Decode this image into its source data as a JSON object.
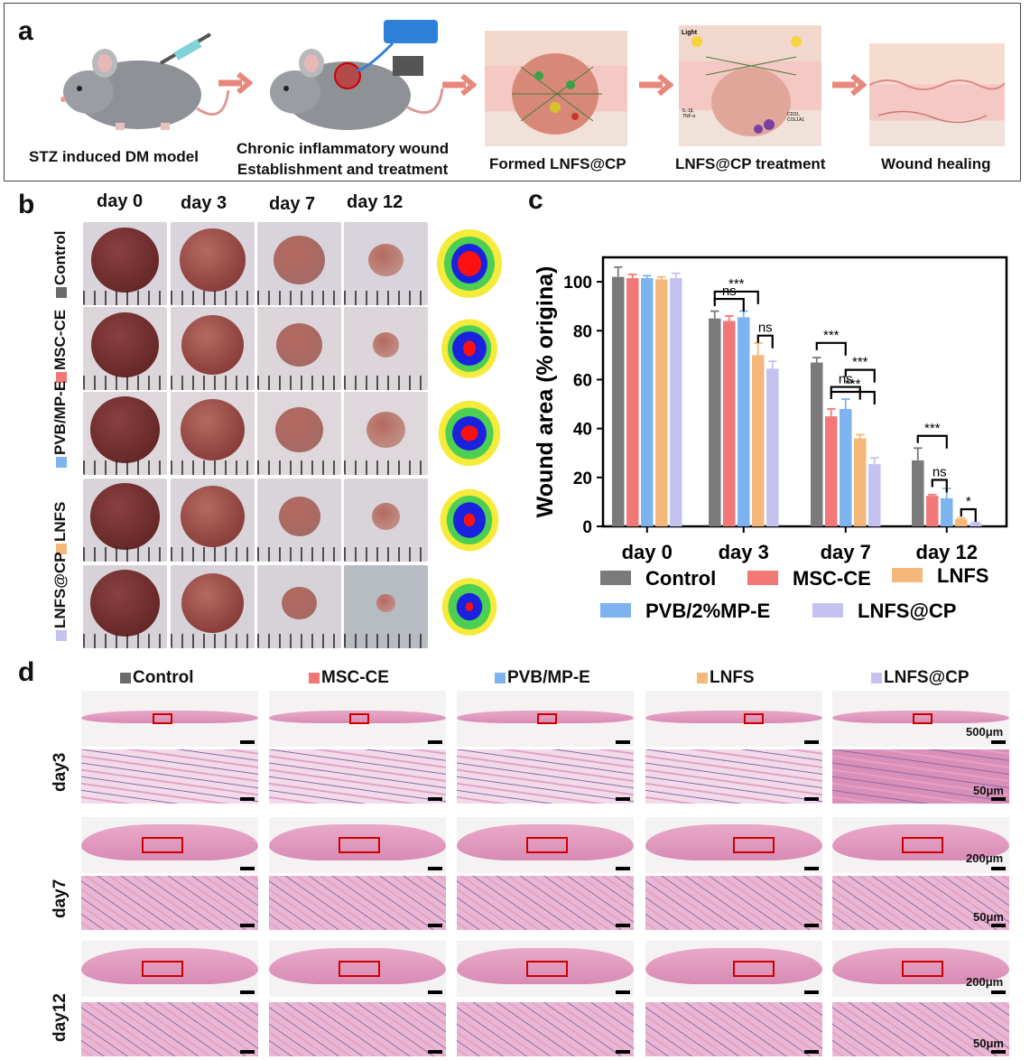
{
  "panels": {
    "a": "a",
    "b": "b",
    "c": "c",
    "d": "d"
  },
  "panel_a": {
    "steps": [
      {
        "caption": "STZ induced DM model"
      },
      {
        "caption": "Chronic inflammatory wound\nEstablishment and treatment"
      },
      {
        "caption": "Formed LNFS@CP"
      },
      {
        "caption": "LNFS@CP treatment"
      },
      {
        "caption": "Wound healing"
      }
    ],
    "inset_light": "Light",
    "inset_left": "IL-1β, TNF-α",
    "inset_right": "CD31, COL1A1"
  },
  "panel_b": {
    "days": [
      "day 0",
      "day 3",
      "day 7",
      "day 12"
    ],
    "groups": [
      "Control",
      "MSC-CE",
      "PVB/MP-E",
      "LNFS",
      "LNFS@CP"
    ],
    "group_colors": [
      "#6b6b6b",
      "#f27878",
      "#7db3ee",
      "#f4b87a",
      "#c6c2f0"
    ]
  },
  "panel_d": {
    "groups": [
      "Control",
      "MSC-CE",
      "PVB/MP-E",
      "LNFS",
      "LNFS@CP"
    ],
    "days": [
      "day3",
      "day7",
      "day12"
    ],
    "scale_low": [
      "500μm",
      "200μm",
      "200μm"
    ],
    "scale_high": "50μm"
  },
  "chart_data": {
    "type": "bar",
    "categories": [
      "day 0",
      "day 3",
      "day 7",
      "day 12"
    ],
    "ylabel": "Wound area (% origina)",
    "xlabel": "",
    "ylim": [
      0,
      110
    ],
    "yticks": [
      0,
      20,
      40,
      60,
      80,
      100
    ],
    "series": [
      {
        "name": "Control",
        "color": "#7a7a7a",
        "values": [
          102,
          85,
          67,
          27
        ],
        "errors": [
          4,
          3,
          2,
          5
        ]
      },
      {
        "name": "MSC-CE",
        "color": "#f27878",
        "values": [
          101.5,
          84,
          45,
          12.5
        ],
        "errors": [
          1.5,
          2,
          3,
          0.5
        ]
      },
      {
        "name": "PVB/2%MP-E",
        "color": "#7db3ee",
        "values": [
          101.5,
          85.5,
          48,
          11.5
        ],
        "errors": [
          1,
          2.5,
          4,
          4
        ]
      },
      {
        "name": "LNFS",
        "color": "#f4b87a",
        "values": [
          101,
          70,
          36,
          3
        ],
        "errors": [
          1,
          5,
          1.5,
          0.5
        ]
      },
      {
        "name": "LNFS@CP",
        "color": "#c6c2f0",
        "values": [
          101.5,
          64.5,
          25.5,
          1.3
        ],
        "errors": [
          2,
          3,
          2.5,
          0.3
        ]
      }
    ],
    "significance": [
      {
        "label": "ns",
        "group": "day 3"
      },
      {
        "label": "***",
        "group": "day 3"
      },
      {
        "label": "ns",
        "group": "day 3"
      },
      {
        "label": "***",
        "group": "day 7"
      },
      {
        "label": "ns",
        "group": "day 7"
      },
      {
        "label": "***",
        "group": "day 7"
      },
      {
        "label": "***",
        "group": "day 7"
      },
      {
        "label": "***",
        "group": "day 12"
      },
      {
        "label": "ns",
        "group": "day 12"
      },
      {
        "label": "*",
        "group": "day 12"
      }
    ]
  }
}
